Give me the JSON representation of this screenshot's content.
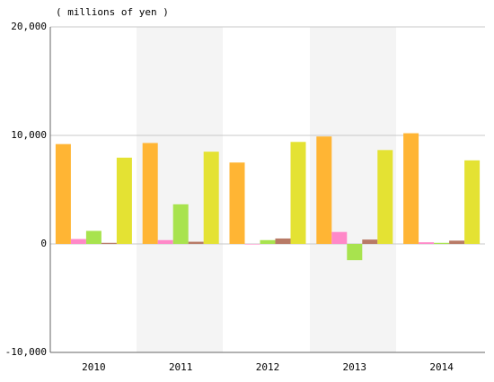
{
  "chart_data": {
    "type": "bar",
    "y_label": "( millions of yen )",
    "categories": [
      "2010",
      "2011",
      "2012",
      "2013",
      "2014"
    ],
    "series": [
      {
        "color": "#ffb534",
        "values": [
          9200,
          9300,
          7500,
          9900,
          10200
        ]
      },
      {
        "color": "#ff88c8",
        "values": [
          450,
          350,
          -50,
          1100,
          150
        ]
      },
      {
        "color": "#a8e34e",
        "values": [
          1200,
          3650,
          350,
          -1500,
          100
        ]
      },
      {
        "color": "#b87a66",
        "values": [
          100,
          200,
          500,
          400,
          300
        ]
      },
      {
        "color": "#e4e233",
        "values": [
          7950,
          8500,
          9400,
          8650,
          7700
        ]
      }
    ],
    "ylim": [
      -10000,
      20000
    ],
    "yticks": [
      {
        "value": -10000,
        "label": "-10,000"
      },
      0,
      {
        "value": 10000,
        "label": "10,000"
      },
      {
        "value": 20000,
        "label": "20,000"
      }
    ],
    "grid": true
  }
}
